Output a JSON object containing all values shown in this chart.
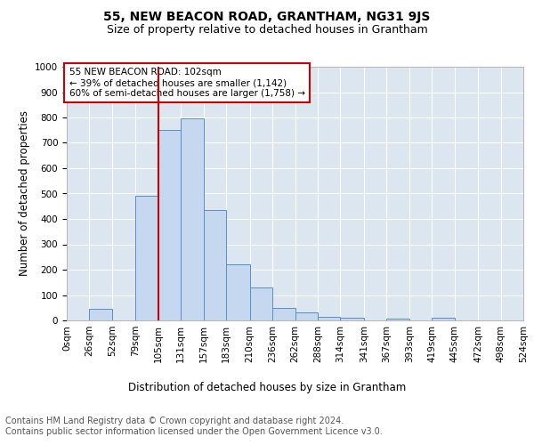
{
  "title": "55, NEW BEACON ROAD, GRANTHAM, NG31 9JS",
  "subtitle": "Size of property relative to detached houses in Grantham",
  "xlabel": "Distribution of detached houses by size in Grantham",
  "ylabel": "Number of detached properties",
  "bin_labels": [
    "0sqm",
    "26sqm",
    "52sqm",
    "79sqm",
    "105sqm",
    "131sqm",
    "157sqm",
    "183sqm",
    "210sqm",
    "236sqm",
    "262sqm",
    "288sqm",
    "314sqm",
    "341sqm",
    "367sqm",
    "393sqm",
    "419sqm",
    "445sqm",
    "472sqm",
    "498sqm",
    "524sqm"
  ],
  "bin_edges": [
    0,
    26,
    52,
    79,
    105,
    131,
    157,
    183,
    210,
    236,
    262,
    288,
    314,
    341,
    367,
    393,
    419,
    445,
    472,
    498,
    524
  ],
  "bar_heights": [
    0,
    45,
    0,
    490,
    750,
    795,
    435,
    220,
    130,
    50,
    30,
    15,
    10,
    0,
    7,
    0,
    10,
    0,
    0,
    0
  ],
  "bar_color": "#c5d8ef",
  "bar_edge_color": "#5b8ec4",
  "property_line_x": 105,
  "property_line_color": "#cc0000",
  "annotation_text": "55 NEW BEACON ROAD: 102sqm\n← 39% of detached houses are smaller (1,142)\n60% of semi-detached houses are larger (1,758) →",
  "annotation_box_color": "#cc0000",
  "ylim": [
    0,
    1000
  ],
  "yticks": [
    0,
    100,
    200,
    300,
    400,
    500,
    600,
    700,
    800,
    900,
    1000
  ],
  "background_color": "#dce6f0",
  "footer_line1": "Contains HM Land Registry data © Crown copyright and database right 2024.",
  "footer_line2": "Contains public sector information licensed under the Open Government Licence v3.0.",
  "title_fontsize": 10,
  "subtitle_fontsize": 9,
  "axis_label_fontsize": 8.5,
  "tick_fontsize": 7.5,
  "footer_fontsize": 7
}
